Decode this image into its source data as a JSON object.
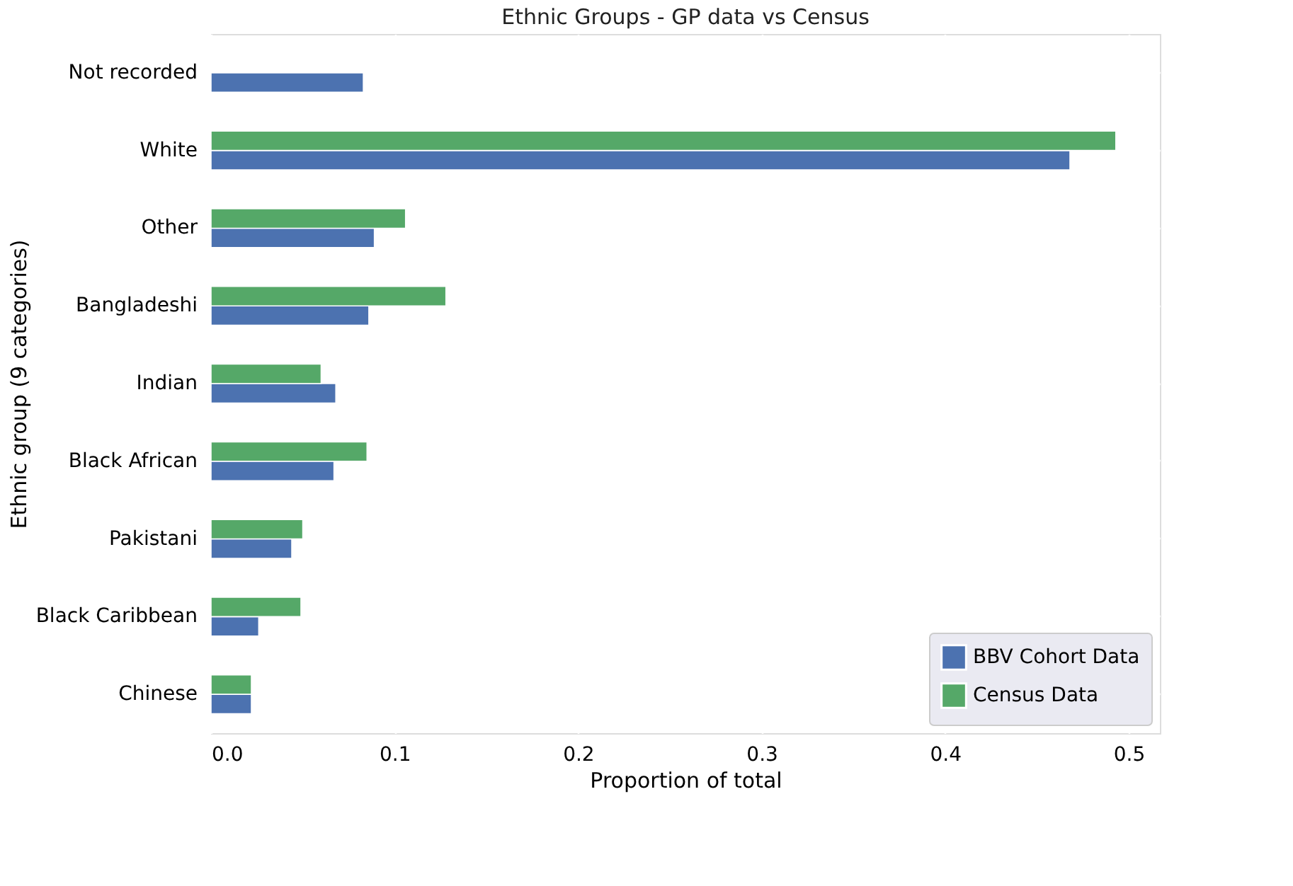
{
  "chart_data": {
    "type": "bar",
    "orientation": "horizontal",
    "title": "Ethnic Groups - GP data vs Census",
    "xlabel": "Proportion of total",
    "ylabel": "Ethnic group (9 categories)",
    "categories": [
      "Not recorded",
      "White",
      "Other",
      "Bangladeshi",
      "Indian",
      "Black African",
      "Pakistani",
      "Black Caribbean",
      "Chinese"
    ],
    "series": [
      {
        "name": "BBV Cohort Data",
        "color": "#4c72b0",
        "values": [
          0.083,
          0.468,
          0.089,
          0.086,
          0.068,
          0.067,
          0.044,
          0.026,
          0.022
        ]
      },
      {
        "name": "Census Data",
        "color": "#55a868",
        "values": [
          null,
          0.493,
          0.106,
          0.128,
          0.06,
          0.085,
          0.05,
          0.049,
          0.022
        ]
      }
    ],
    "xlim": [
      0,
      0.517
    ],
    "xticks": [
      {
        "value": 0,
        "label": "0.0"
      },
      0.1,
      0.2,
      0.3,
      0.4,
      0.5
    ],
    "grid": true,
    "legend": "bottom right"
  }
}
